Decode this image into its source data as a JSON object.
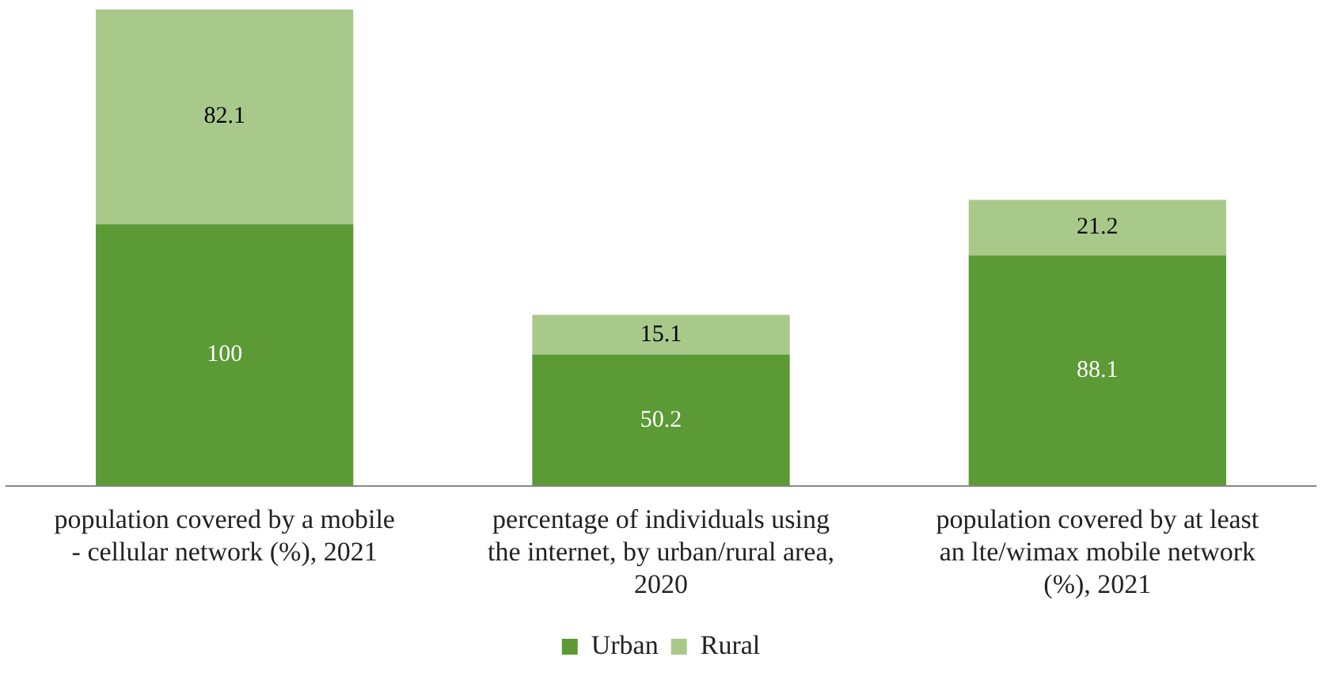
{
  "chart_data": {
    "type": "bar",
    "stacked": true,
    "tick_labels": "x",
    "data_labels": true,
    "legend": "bottom",
    "grid": false,
    "categories": [
      "population covered by a mobile - cellular network (%), 2021",
      "percentage of individuals using the internet, by urban/rural area, 2020",
      "population covered by at least an lte/wimax mobile network (%), 2021"
    ],
    "series": [
      {
        "name": "Urban",
        "color": "#5b9a35",
        "values": [
          100,
          50.2,
          88.1
        ]
      },
      {
        "name": "Rural",
        "color": "#a9c98a",
        "values": [
          82.1,
          15.1,
          21.2
        ]
      }
    ]
  }
}
